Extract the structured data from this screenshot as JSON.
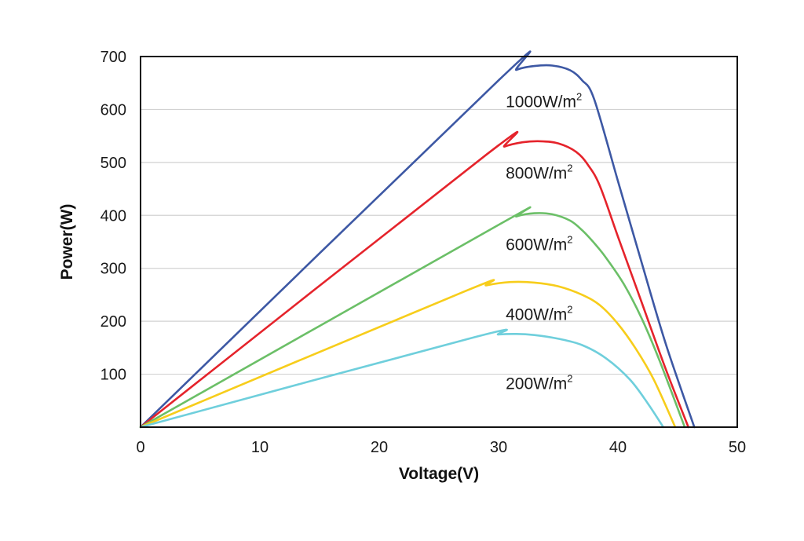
{
  "chart_data": {
    "type": "line",
    "xlabel": "Voltage(V)",
    "ylabel": "Power(W)",
    "xlim": [
      0,
      50
    ],
    "ylim": [
      0,
      700
    ],
    "x_ticks": [
      "0",
      "10",
      "20",
      "30",
      "40",
      "50"
    ],
    "y_ticks": [
      "100",
      "200",
      "300",
      "400",
      "500",
      "600",
      "700"
    ],
    "grid": true,
    "legend": "none",
    "series": [
      {
        "name": "1000W/m2",
        "label_main": "1000W/m",
        "label_sup": "2",
        "color": "#3d58a4",
        "points": [
          [
            0,
            0
          ],
          [
            30,
            655
          ],
          [
            31.5,
            675
          ],
          [
            33,
            682
          ],
          [
            34.5,
            683
          ],
          [
            36,
            674
          ],
          [
            37,
            655
          ],
          [
            38,
            620
          ],
          [
            40,
            465
          ],
          [
            42,
            310
          ],
          [
            44,
            158
          ],
          [
            46.4,
            0
          ]
        ]
      },
      {
        "name": "800W/m2",
        "label_main": "800W/m",
        "label_sup": "2",
        "color": "#e5232b",
        "points": [
          [
            0,
            0
          ],
          [
            29,
            515
          ],
          [
            30.5,
            530
          ],
          [
            32,
            538
          ],
          [
            33.5,
            540
          ],
          [
            35,
            536
          ],
          [
            36.5,
            520
          ],
          [
            37.5,
            495
          ],
          [
            38.5,
            455
          ],
          [
            40,
            360
          ],
          [
            42,
            235
          ],
          [
            44,
            110
          ],
          [
            45.9,
            0
          ]
        ]
      },
      {
        "name": "600W/m2",
        "label_main": "600W/m",
        "label_sup": "2",
        "color": "#6bbf67",
        "points": [
          [
            0,
            0
          ],
          [
            30,
            382
          ],
          [
            31.5,
            398
          ],
          [
            33,
            404
          ],
          [
            34.5,
            402
          ],
          [
            36,
            390
          ],
          [
            37,
            372
          ],
          [
            38,
            348
          ],
          [
            39,
            320
          ],
          [
            40.5,
            270
          ],
          [
            42,
            205
          ],
          [
            43.5,
            125
          ],
          [
            45.6,
            0
          ]
        ]
      },
      {
        "name": "400W/m2",
        "label_main": "400W/m",
        "label_sup": "2",
        "color": "#f7cd1b",
        "points": [
          [
            0,
            0
          ],
          [
            27,
            255
          ],
          [
            29,
            268
          ],
          [
            31,
            274
          ],
          [
            33,
            273
          ],
          [
            35,
            266
          ],
          [
            37,
            250
          ],
          [
            38.5,
            230
          ],
          [
            40,
            195
          ],
          [
            41.5,
            148
          ],
          [
            43,
            90
          ],
          [
            44.8,
            0
          ]
        ]
      },
      {
        "name": "200W/m2",
        "label_main": "200W/m",
        "label_sup": "2",
        "color": "#6fcfdc",
        "points": [
          [
            0,
            0
          ],
          [
            28,
            170
          ],
          [
            30,
            175
          ],
          [
            31.5,
            176
          ],
          [
            33,
            174
          ],
          [
            35,
            167
          ],
          [
            37,
            155
          ],
          [
            39,
            130
          ],
          [
            41,
            90
          ],
          [
            42.5,
            45
          ],
          [
            43.8,
            0
          ]
        ]
      }
    ]
  }
}
